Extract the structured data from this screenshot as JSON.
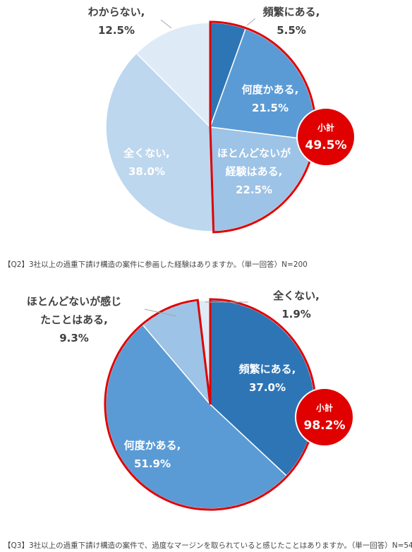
{
  "colors": {
    "dark_blue": "#2e75b6",
    "mid_blue": "#5b9bd5",
    "light_blue": "#9dc3e6",
    "pale_blue": "#bdd7ee",
    "very_pale_blue": "#deebf7",
    "highlight_red": "#e00000",
    "label_text": "#404040",
    "inner_label_text": "#ffffff"
  },
  "chart_data": [
    {
      "type": "pie",
      "caption": "【Q2】3社以上の過重下請け構造の案件に参画した経験はありますか。（単一回答）N=200",
      "slices": [
        {
          "label": "頻繁にある,",
          "value": 5.5,
          "value_text": "5.5%",
          "color": "#2e75b6",
          "label_inside": false,
          "highlight": true
        },
        {
          "label": "何度かある,",
          "value": 21.5,
          "value_text": "21.5%",
          "color": "#5b9bd5",
          "label_inside": true,
          "highlight": true
        },
        {
          "label": "ほとんどないが\n経験はある,",
          "value": 22.5,
          "value_text": "22.5%",
          "color": "#9dc3e6",
          "label_inside": true,
          "highlight": true
        },
        {
          "label": "全くない,",
          "value": 38.0,
          "value_text": "38.0%",
          "color": "#bdd7ee",
          "label_inside": true,
          "highlight": false
        },
        {
          "label": "わからない,",
          "value": 12.5,
          "value_text": "12.5%",
          "color": "#deebf7",
          "label_inside": false,
          "highlight": false
        }
      ],
      "subtotal": {
        "label": "小計",
        "value": 49.5,
        "value_text": "49.5%"
      }
    },
    {
      "type": "pie",
      "caption": "【Q3】3社以上の過重下請け構造の案件で、過度なマージンを取られていると感じたことはありますか。（単一回答）N=54",
      "slices": [
        {
          "label": "頻繁にある,",
          "value": 37.0,
          "value_text": "37.0%",
          "color": "#2e75b6",
          "label_inside": true,
          "highlight": true
        },
        {
          "label": "何度かある,",
          "value": 51.9,
          "value_text": "51.9%",
          "color": "#5b9bd5",
          "label_inside": true,
          "highlight": true
        },
        {
          "label": "ほとんどないが感じ\nたことはある,",
          "value": 9.3,
          "value_text": "9.3%",
          "color": "#9dc3e6",
          "label_inside": false,
          "highlight": true
        },
        {
          "label": "全くない,",
          "value": 1.9,
          "value_text": "1.9%",
          "color": "#deebf7",
          "label_inside": false,
          "highlight": false
        }
      ],
      "subtotal": {
        "label": "小計",
        "value": 98.2,
        "value_text": "98.2%"
      }
    }
  ]
}
